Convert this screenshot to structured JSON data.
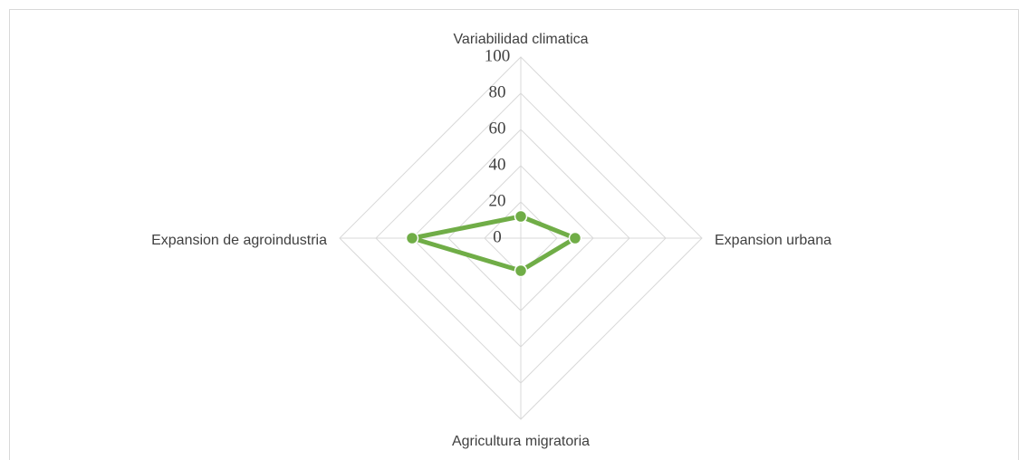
{
  "chart_data": {
    "type": "radar",
    "categories": [
      "Variabilidad climatica",
      "Expansion urbana",
      "Agricultura migratoria",
      "Expansion de agroindustria"
    ],
    "values": [
      12,
      30,
      18,
      60
    ],
    "color": "#70ad47",
    "rlim": [
      0,
      100
    ],
    "rticks": [
      0,
      20,
      40,
      60,
      80,
      100
    ],
    "grid": true
  }
}
